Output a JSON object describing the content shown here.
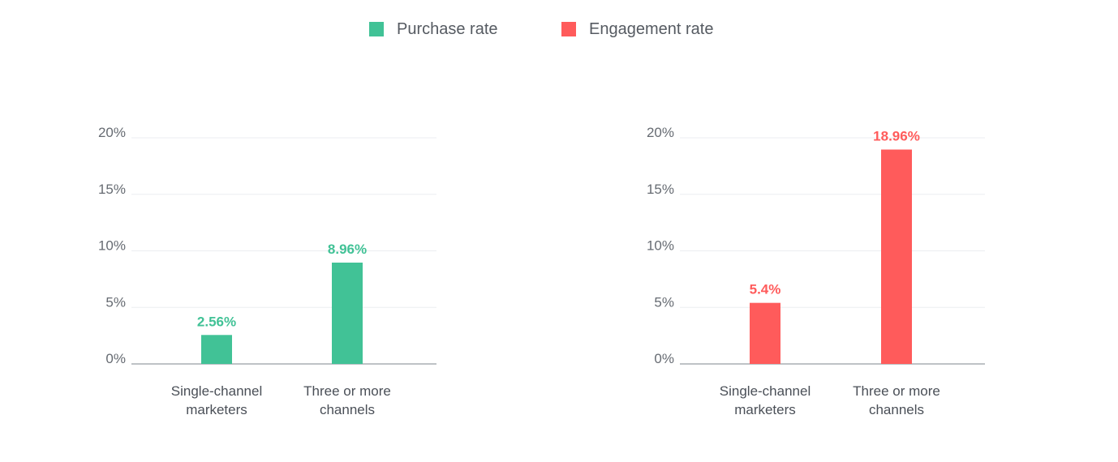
{
  "legend": [
    {
      "label": "Purchase rate",
      "color": "#41c296"
    },
    {
      "label": "Engagement rate",
      "color": "#ff5b5b"
    }
  ],
  "chart_data": [
    {
      "type": "bar",
      "categories": [
        [
          "Single-channel",
          "marketers"
        ],
        [
          "Three or more",
          "channels"
        ]
      ],
      "series": [
        {
          "name": "Purchase rate",
          "values": [
            2.56,
            8.96
          ],
          "labels": [
            "2.56%",
            "8.96%"
          ],
          "color": "#41c296"
        }
      ],
      "yticks": [
        "0%",
        "5%",
        "10%",
        "15%",
        "20%"
      ],
      "ylim": [
        0,
        20
      ],
      "grid": true
    },
    {
      "type": "bar",
      "categories": [
        [
          "Single-channel",
          "marketers"
        ],
        [
          "Three or more",
          "channels"
        ]
      ],
      "series": [
        {
          "name": "Engagement rate",
          "values": [
            5.4,
            18.96
          ],
          "labels": [
            "5.4%",
            "18.96%"
          ],
          "color": "#ff5b5b"
        }
      ],
      "yticks": [
        "0%",
        "5%",
        "10%",
        "15%",
        "20%"
      ],
      "ylim": [
        0,
        20
      ],
      "grid": true
    }
  ]
}
